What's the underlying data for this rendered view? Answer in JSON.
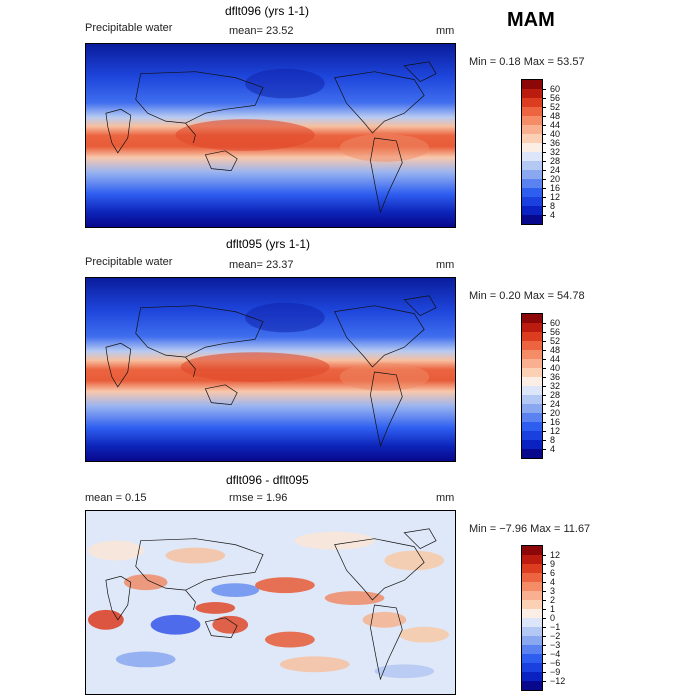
{
  "season": "MAM",
  "panels": [
    {
      "title": "dflt096 (yrs 1-1)",
      "label": "Precipitable water",
      "stat_text": "mean=  23.52",
      "units": "mm",
      "minmax_text": "Min =   0.18 Max =  53.57",
      "colorbar": {
        "colors": [
          "#08088c",
          "#0b22c2",
          "#1a40e0",
          "#2e5ef0",
          "#5a82f0",
          "#8aa8f0",
          "#b4c8f4",
          "#dce6f8",
          "#fbeee4",
          "#fcd0b4",
          "#f8b090",
          "#f48c68",
          "#ec6440",
          "#dc3c20",
          "#bc1c10",
          "#8c0808"
        ],
        "labels": [
          "4",
          "8",
          "12",
          "16",
          "20",
          "24",
          "28",
          "32",
          "36",
          "40",
          "44",
          "48",
          "52",
          "56",
          "60"
        ]
      }
    },
    {
      "title": "dflt095 (yrs 1-1)",
      "label": "Precipitable water",
      "stat_text": "mean=  23.37",
      "units": "mm",
      "minmax_text": "Min =   0.20 Max =  54.78",
      "colorbar": {
        "colors": [
          "#08088c",
          "#0b22c2",
          "#1a40e0",
          "#2e5ef0",
          "#5a82f0",
          "#8aa8f0",
          "#b4c8f4",
          "#dce6f8",
          "#fbeee4",
          "#fcd0b4",
          "#f8b090",
          "#f48c68",
          "#ec6440",
          "#dc3c20",
          "#bc1c10",
          "#8c0808"
        ],
        "labels": [
          "4",
          "8",
          "12",
          "16",
          "20",
          "24",
          "28",
          "32",
          "36",
          "40",
          "44",
          "48",
          "52",
          "56",
          "60"
        ]
      }
    },
    {
      "title": "dflt096 - dflt095",
      "label": "mean =    0.15",
      "stat_text": "rmse =    1.96",
      "units": "mm",
      "minmax_text": "Min =  −7.96 Max =  11.67",
      "colorbar": {
        "colors": [
          "#08088c",
          "#0b22c2",
          "#1a40e0",
          "#2e5ef0",
          "#5a82f0",
          "#8aa8f0",
          "#b4c8f4",
          "#dce6f8",
          "#fbeee4",
          "#fcd0b4",
          "#f8b090",
          "#f48c68",
          "#ec6440",
          "#dc3c20",
          "#bc1c10",
          "#8c0808"
        ],
        "labels": [
          "−12",
          "−9",
          "−6",
          "−4",
          "−3",
          "−2",
          "−1",
          "0",
          "1",
          "2",
          "3",
          "4",
          "6",
          "9",
          "12"
        ]
      }
    }
  ]
}
